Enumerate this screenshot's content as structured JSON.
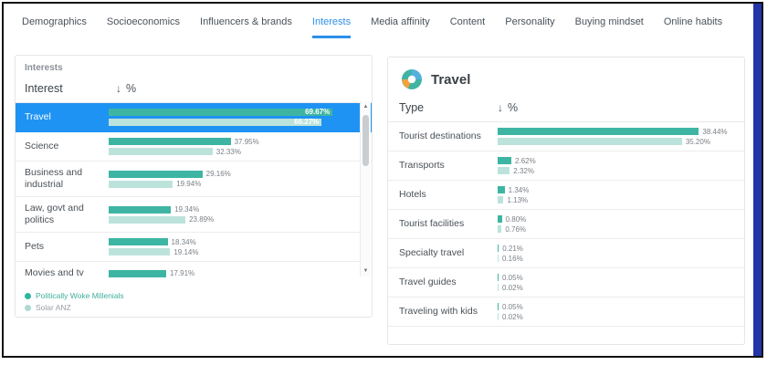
{
  "icons": {
    "sort_desc": "↓",
    "scroll_up": "▲",
    "scroll_down": "▼"
  },
  "colors": {
    "active_tab": "#2d8fe8",
    "selected_row": "#1e93f4",
    "bar_primary": "#3eb5a3",
    "bar_secondary": "#bce3db",
    "frame_accent": "#2336a8"
  },
  "tabs": [
    {
      "label": "Demographics",
      "active": false
    },
    {
      "label": "Socioeconomics",
      "active": false
    },
    {
      "label": "Influencers & brands",
      "active": false
    },
    {
      "label": "Interests",
      "active": true
    },
    {
      "label": "Media affinity",
      "active": false
    },
    {
      "label": "Content",
      "active": false
    },
    {
      "label": "Personality",
      "active": false
    },
    {
      "label": "Buying mindset",
      "active": false
    },
    {
      "label": "Online habits",
      "active": false
    }
  ],
  "interests_panel": {
    "title": "Interests",
    "columns": {
      "label": "Interest",
      "percent": "%"
    },
    "scale_max": 75,
    "rows": [
      {
        "label": "Travel",
        "v1": 69.67,
        "v2": 66.27,
        "selected": true
      },
      {
        "label": "Science",
        "v1": 37.95,
        "v2": 32.33
      },
      {
        "label": "Business and industrial",
        "v1": 29.16,
        "v2": 19.94
      },
      {
        "label": "Law, govt and politics",
        "v1": 19.34,
        "v2": 23.89
      },
      {
        "label": "Pets",
        "v1": 18.34,
        "v2": 19.14
      },
      {
        "label": "Movies and tv",
        "v1": 17.91,
        "v2": null
      }
    ],
    "legend": [
      {
        "label": "Politically Woke Millenials",
        "color": "#2eb5a0",
        "text_color": "#3fae9d"
      },
      {
        "label": "Solar ANZ",
        "color": "#aed9d2",
        "text_color": "#9aa0a6"
      }
    ]
  },
  "detail_panel": {
    "title": "Travel",
    "columns": {
      "label": "Type",
      "percent": "%"
    },
    "scale_max": 45,
    "rows": [
      {
        "label": "Tourist destinations",
        "v1": 38.44,
        "v2": 35.2
      },
      {
        "label": "Transports",
        "v1": 2.62,
        "v2": 2.32
      },
      {
        "label": "Hotels",
        "v1": 1.34,
        "v2": 1.13
      },
      {
        "label": "Tourist facilities",
        "v1": 0.8,
        "v2": 0.76
      },
      {
        "label": "Specialty travel",
        "v1": 0.21,
        "v2": 0.16
      },
      {
        "label": "Travel guides",
        "v1": 0.05,
        "v2": 0.02
      },
      {
        "label": "Traveling with kids",
        "v1": 0.05,
        "v2": 0.02
      }
    ]
  }
}
